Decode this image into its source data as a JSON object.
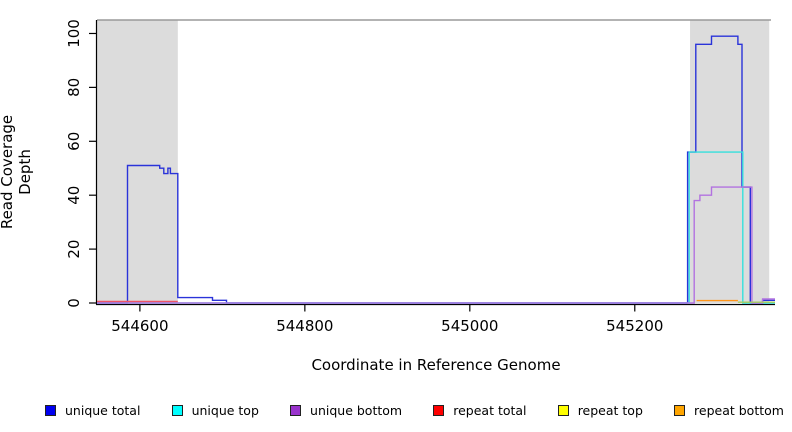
{
  "figure": {
    "background": "#FFFFFF",
    "axis_color": "#000000",
    "highlight_color": "#DCDCDC",
    "top_border_color": "#9A9A9A"
  },
  "chart_data": {
    "type": "line",
    "title": "",
    "xlabel": "Coordinate in Reference Genome",
    "ylabel": "Read Coverage Depth",
    "xlim": [
      544548,
      545370
    ],
    "ylim": [
      0,
      105
    ],
    "grid": false,
    "legend_position": "bottom-horizontal",
    "x_ticks": [
      {
        "value": 544600,
        "label": "544600"
      },
      {
        "value": 544800,
        "label": "544800"
      },
      {
        "value": 545000,
        "label": "545000"
      },
      {
        "value": 545200,
        "label": "545200"
      }
    ],
    "y_ticks": [
      {
        "value": 0,
        "label": "0"
      },
      {
        "value": 20,
        "label": "20"
      },
      {
        "value": 40,
        "label": "40"
      },
      {
        "value": 60,
        "label": "60"
      },
      {
        "value": 80,
        "label": "80"
      },
      {
        "value": 100,
        "label": "100"
      }
    ],
    "highlight_regions": [
      {
        "name": "repeat-region-left",
        "x0": 544548,
        "x1": 544646
      },
      {
        "name": "repeat-region-right",
        "x0": 545267,
        "x1": 545363
      }
    ],
    "top_border_y": 105,
    "series": [
      {
        "name": "unique total",
        "color": "#0000F0",
        "line_color": "#2A33D9",
        "points": [
          [
            544548,
            0
          ],
          [
            544585,
            0
          ],
          [
            544585,
            51
          ],
          [
            544624,
            51
          ],
          [
            544624,
            50
          ],
          [
            544629,
            50
          ],
          [
            544629,
            48
          ],
          [
            544634,
            48
          ],
          [
            544634,
            50
          ],
          [
            544637,
            50
          ],
          [
            544637,
            48
          ],
          [
            544646,
            48
          ],
          [
            544646,
            2
          ],
          [
            544688,
            2
          ],
          [
            544688,
            1
          ],
          [
            544705,
            1
          ],
          [
            544705,
            0
          ],
          [
            545264,
            0
          ],
          [
            545264,
            56
          ],
          [
            545274,
            56
          ],
          [
            545274,
            96
          ],
          [
            545293,
            96
          ],
          [
            545293,
            99
          ],
          [
            545325,
            99
          ],
          [
            545325,
            96
          ],
          [
            545330,
            96
          ],
          [
            545330,
            43
          ],
          [
            545340,
            43
          ],
          [
            545340,
            0
          ],
          [
            545355,
            0
          ],
          [
            545355,
            1
          ],
          [
            545370,
            1
          ]
        ]
      },
      {
        "name": "unique top",
        "color": "#00FFFF",
        "line_color": "#35E0DC",
        "points": [
          [
            544548,
            0
          ],
          [
            545266,
            0
          ],
          [
            545266,
            56
          ],
          [
            545331,
            56
          ],
          [
            545331,
            0
          ],
          [
            545370,
            0
          ]
        ]
      },
      {
        "name": "unique bottom",
        "color": "#9933CC",
        "line_color": "#B272E0",
        "points": [
          [
            544548,
            0
          ],
          [
            545272,
            0
          ],
          [
            545272,
            38
          ],
          [
            545279,
            38
          ],
          [
            545279,
            40
          ],
          [
            545293,
            40
          ],
          [
            545293,
            43
          ],
          [
            545342,
            43
          ],
          [
            545342,
            0
          ],
          [
            545355,
            0
          ],
          [
            545355,
            1.5
          ],
          [
            545370,
            1.5
          ]
        ]
      },
      {
        "name": "repeat total",
        "color": "#FF0000",
        "line_color": "#EE5566",
        "points": [
          [
            544548,
            0.6
          ],
          [
            544646,
            0.6
          ]
        ]
      },
      {
        "name": "repeat top",
        "color": "#FFFF00",
        "line_color": "#A6CE5F",
        "points": [
          [
            545325,
            0.3
          ],
          [
            545370,
            0.3
          ]
        ]
      },
      {
        "name": "repeat bottom",
        "color": "#FFA500",
        "line_color": "#FF9518",
        "points": [
          [
            545275,
            0.9
          ],
          [
            545325,
            0.9
          ]
        ]
      }
    ]
  }
}
